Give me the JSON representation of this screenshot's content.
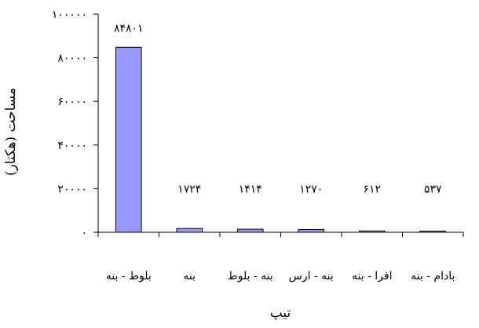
{
  "chart_data": {
    "type": "bar",
    "categories": [
      "بلوط - بنه",
      "بنه",
      "بنه - بلوط",
      "بنه - ارس",
      "افرا - بنه",
      "بادام - بنه"
    ],
    "category_labels": [
      "بلوط - بنه",
      "بنه",
      "بنه - بلوط",
      "بنه - ارس",
      "افرا - بنه",
      "بادام - بنه"
    ],
    "values": [
      84801,
      1724,
      1414,
      1270,
      612,
      537
    ],
    "data_labels": [
      "۸۴۸۰۱",
      "۱۷۲۴",
      "۱۴۱۴",
      "۱۲۷۰",
      "۶۱۲",
      "۵۳۷"
    ],
    "ylim": [
      0,
      100000
    ],
    "yticks": [
      0,
      20000,
      40000,
      60000,
      80000,
      100000
    ],
    "ytick_labels": [
      "۰",
      "۲۰۰۰۰",
      "۴۰۰۰۰",
      "۶۰۰۰۰",
      "۸۰۰۰۰",
      "۱۰۰۰۰۰"
    ],
    "xlabel": "تیپ",
    "ylabel": "مساحت (هکتار)",
    "grid": false,
    "legend": "none",
    "bar_color": "#9999ff",
    "bar_edge_color": "#000000"
  }
}
